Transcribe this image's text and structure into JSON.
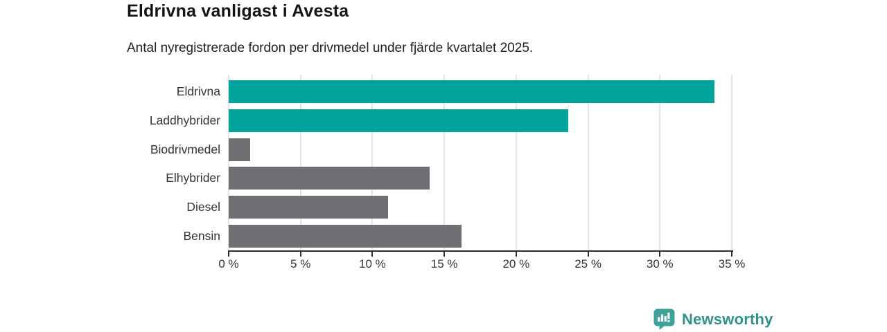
{
  "chart": {
    "title": "Eldrivna vanligast i Avesta",
    "subtitle": "Antal nyregistrerade fordon per drivmedel under fjärde kvartalet 2025."
  },
  "chart_data": {
    "type": "bar",
    "orientation": "horizontal",
    "title": "Eldrivna vanligast i Avesta",
    "subtitle": "Antal nyregistrerade fordon per drivmedel under fjärde kvartalet 2025.",
    "categories": [
      "Eldrivna",
      "Laddhybrider",
      "Biodrivmedel",
      "Elhybrider",
      "Diesel",
      "Bensin"
    ],
    "values": [
      33.8,
      23.6,
      1.5,
      14.0,
      11.1,
      16.2
    ],
    "unit": "%",
    "xlabel": "",
    "ylabel": "",
    "xlim": [
      0,
      35
    ],
    "x_tick_values": [
      0,
      5,
      10,
      15,
      20,
      25,
      30,
      35
    ],
    "x_tick_labels": [
      "0 %",
      "5 %",
      "10 %",
      "15 %",
      "20 %",
      "25 %",
      "30 %",
      "35 %"
    ],
    "grid": true,
    "gridline_color": "#e3e3e3",
    "bar_colors": [
      "#00a49a",
      "#00a49a",
      "#6e6e73",
      "#6e6e73",
      "#6e6e73",
      "#6e6e73"
    ],
    "highlight_color": "#00a49a",
    "default_color": "#6e6e73",
    "legend": null
  },
  "branding": {
    "logo_text": "Newsworthy",
    "logo_text_color": "#2f928b",
    "logo_icon_color": "#3fa29a",
    "logo_icon": "bar-chart-speech-bubble-icon"
  }
}
